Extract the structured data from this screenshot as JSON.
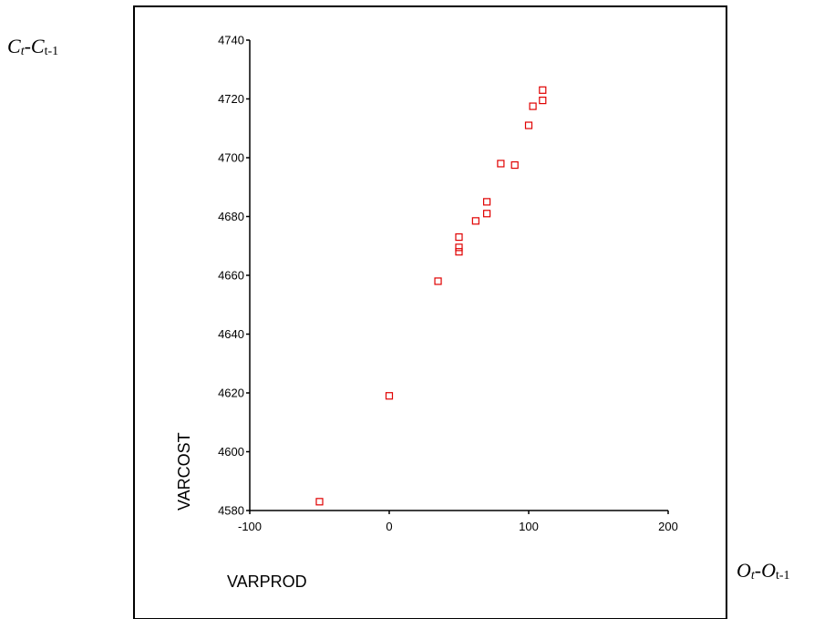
{
  "left_note": {
    "a": "C",
    "a_sub": "t",
    "dash": "-",
    "b": "C",
    "b_sub": "t-1"
  },
  "right_note": {
    "a": "O",
    "a_sub": "t",
    "dash": "-",
    "b": "O",
    "b_sub": "t-1"
  },
  "chart_data": {
    "type": "scatter",
    "xlabel": "VARPROD",
    "ylabel": "VARCOST",
    "xlim": [
      -100,
      200
    ],
    "ylim": [
      4580,
      4740
    ],
    "xticks": [
      -100,
      0,
      100,
      200
    ],
    "yticks": [
      4580,
      4600,
      4620,
      4640,
      4660,
      4680,
      4700,
      4720,
      4740
    ],
    "grid": false,
    "marker_color": "#e00000",
    "x": [
      -50,
      0,
      35,
      50,
      50,
      50,
      62,
      70,
      70,
      80,
      90,
      100,
      103,
      110,
      110
    ],
    "y": [
      4583,
      4619,
      4658,
      4668,
      4669.5,
      4673,
      4678.5,
      4681,
      4685,
      4698,
      4697.5,
      4711,
      4717.5,
      4719.5,
      4723
    ]
  }
}
